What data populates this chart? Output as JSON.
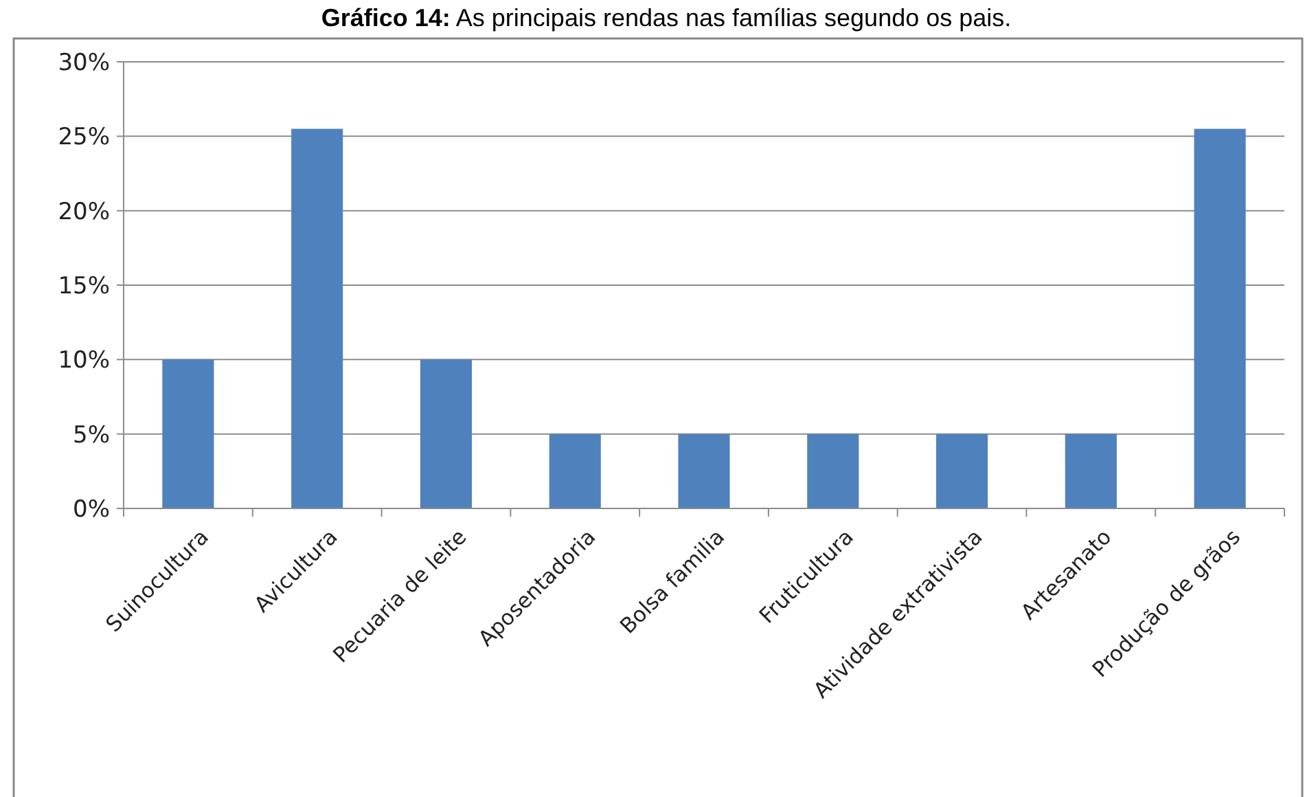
{
  "chart_data": {
    "type": "bar",
    "title": "Gráfico 14: As principais rendas nas famílias segundo os pais.",
    "categories": [
      "Suinocultura",
      "Avicultura",
      "Pecuaria de leite",
      "Aposentadoria",
      "Bolsa familia",
      "Fruticultura",
      "Atividade extrativista",
      "Artesanato",
      "Produção de grãos"
    ],
    "values": [
      10,
      25.5,
      10,
      5,
      5,
      5,
      5,
      5,
      25.5
    ],
    "color": "#4f81bd",
    "ylim": [
      0,
      30
    ],
    "yticks": [
      {
        "value": 0,
        "label": "0%"
      },
      {
        "value": 5,
        "label": "5%"
      },
      {
        "value": 10,
        "label": "10%"
      },
      {
        "value": 15,
        "label": "15%"
      },
      {
        "value": 20,
        "label": "20%"
      },
      {
        "value": 25,
        "label": "25%"
      },
      {
        "value": 30,
        "label": "30%"
      }
    ],
    "grid": "y"
  }
}
